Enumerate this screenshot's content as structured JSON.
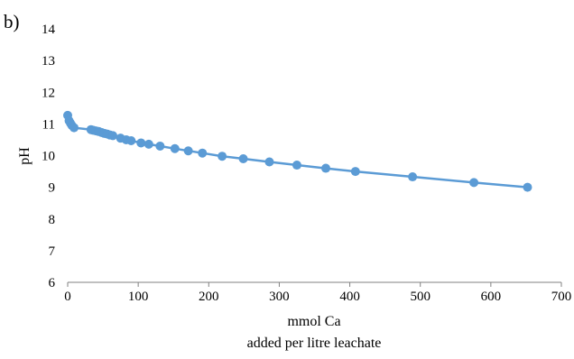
{
  "panel_label": "b)",
  "chart_data": {
    "type": "scatter",
    "title": "",
    "xlabel": [
      "mmol Ca",
      "added per litre leachate"
    ],
    "ylabel": "pH",
    "xlim": [
      0,
      700
    ],
    "ylim": [
      6,
      14
    ],
    "x_ticks": [
      0,
      100,
      200,
      300,
      400,
      500,
      600,
      700
    ],
    "y_ticks": [
      6,
      7,
      8,
      9,
      10,
      11,
      12,
      13,
      14
    ],
    "grid": false,
    "legend": "none",
    "colors": {
      "series": "#5B9BD5",
      "axis": "#808080"
    },
    "series": [
      {
        "markers": true,
        "line": true,
        "points": [
          [
            0,
            11.27
          ],
          [
            2,
            11.1
          ],
          [
            4,
            11.02
          ],
          [
            6,
            10.95
          ],
          [
            9,
            10.88
          ],
          [
            33,
            10.82
          ],
          [
            36,
            10.8
          ],
          [
            40,
            10.78
          ],
          [
            44,
            10.76
          ],
          [
            48,
            10.73
          ],
          [
            52,
            10.7
          ],
          [
            56,
            10.68
          ],
          [
            60,
            10.65
          ],
          [
            64,
            10.63
          ],
          [
            75,
            10.55
          ],
          [
            83,
            10.5
          ],
          [
            90,
            10.47
          ],
          [
            104,
            10.4
          ],
          [
            115,
            10.36
          ],
          [
            131,
            10.3
          ],
          [
            152,
            10.22
          ],
          [
            171,
            10.15
          ],
          [
            191,
            10.08
          ],
          [
            219,
            9.98
          ],
          [
            249,
            9.9
          ],
          [
            286,
            9.8
          ],
          [
            325,
            9.7
          ],
          [
            366,
            9.6
          ],
          [
            408,
            9.5
          ],
          [
            489,
            9.33
          ],
          [
            576,
            9.15
          ],
          [
            652,
            9.0
          ]
        ]
      }
    ]
  }
}
